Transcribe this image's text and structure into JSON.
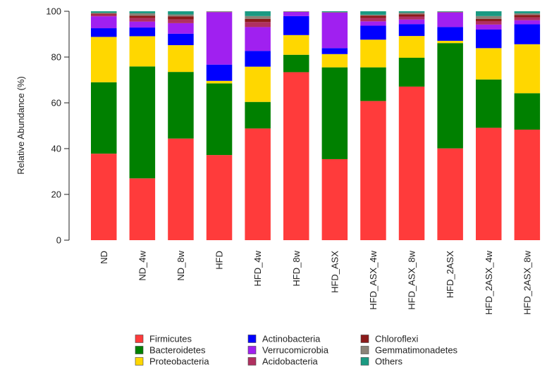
{
  "chart_data": {
    "type": "bar",
    "stacked": true,
    "title": "",
    "xlabel": "",
    "ylabel": "Relative Abundance (%)",
    "ylim": [
      0,
      100
    ],
    "yticks": [
      0,
      20,
      40,
      60,
      80,
      100
    ],
    "categories": [
      "ND",
      "ND_4w",
      "ND_8w",
      "HFD",
      "HFD_4w",
      "HFD_8w",
      "HFD_ASX",
      "HFD_ASX_4w",
      "HFD_ASX_8w",
      "HFD_2ASX",
      "HFD_2ASX_4w",
      "HFD_2ASX_8w"
    ],
    "series": [
      {
        "name": "Firmicutes",
        "color": "#ff3b3b",
        "values": [
          37.8,
          27.0,
          44.4,
          37.2,
          48.8,
          73.4,
          35.4,
          60.8,
          67.1,
          40.1,
          49.1,
          48.3
        ]
      },
      {
        "name": "Bacteroidetes",
        "color": "#008000",
        "values": [
          31.2,
          48.9,
          29.1,
          31.3,
          11.6,
          7.6,
          40.1,
          14.7,
          12.6,
          46.0,
          21.1,
          15.9
        ]
      },
      {
        "name": "Proteobacteria",
        "color": "#ffd700",
        "values": [
          19.8,
          13.2,
          11.7,
          1.1,
          15.4,
          8.6,
          5.8,
          12.1,
          9.5,
          1.0,
          13.7,
          21.4
        ]
      },
      {
        "name": "Actinobacteria",
        "color": "#0000ff",
        "values": [
          3.8,
          3.8,
          5.0,
          7.1,
          6.9,
          8.3,
          2.6,
          6.1,
          5.2,
          6.0,
          8.1,
          8.7
        ]
      },
      {
        "name": "Verrucomicrobia",
        "color": "#a020f0",
        "values": [
          5.2,
          2.6,
          4.6,
          22.9,
          10.4,
          1.8,
          15.5,
          1.9,
          2.0,
          6.4,
          2.2,
          1.8
        ]
      },
      {
        "name": "Acidobacteria",
        "color": "#b03060",
        "values": [
          0.8,
          1.6,
          1.6,
          0.1,
          2.2,
          0.1,
          0.1,
          1.5,
          1.3,
          0.1,
          1.5,
          1.2
        ]
      },
      {
        "name": "Chloroflexi",
        "color": "#8b1a1a",
        "values": [
          0.4,
          1.0,
          1.4,
          0.1,
          1.4,
          0.1,
          0.1,
          1.0,
          1.0,
          0.1,
          1.0,
          1.1
        ]
      },
      {
        "name": "Gemmatimonadetes",
        "color": "#8b8378",
        "values": [
          0.3,
          1.0,
          0.8,
          0.1,
          1.2,
          0.0,
          0.0,
          0.4,
          0.7,
          0.1,
          1.2,
          0.7
        ]
      },
      {
        "name": "Others",
        "color": "#1a9a82",
        "values": [
          0.7,
          0.9,
          1.4,
          0.1,
          2.1,
          0.1,
          0.4,
          1.5,
          0.6,
          0.2,
          2.1,
          0.9
        ]
      }
    ],
    "legend": {
      "position": "bottom",
      "columns": 3
    }
  }
}
